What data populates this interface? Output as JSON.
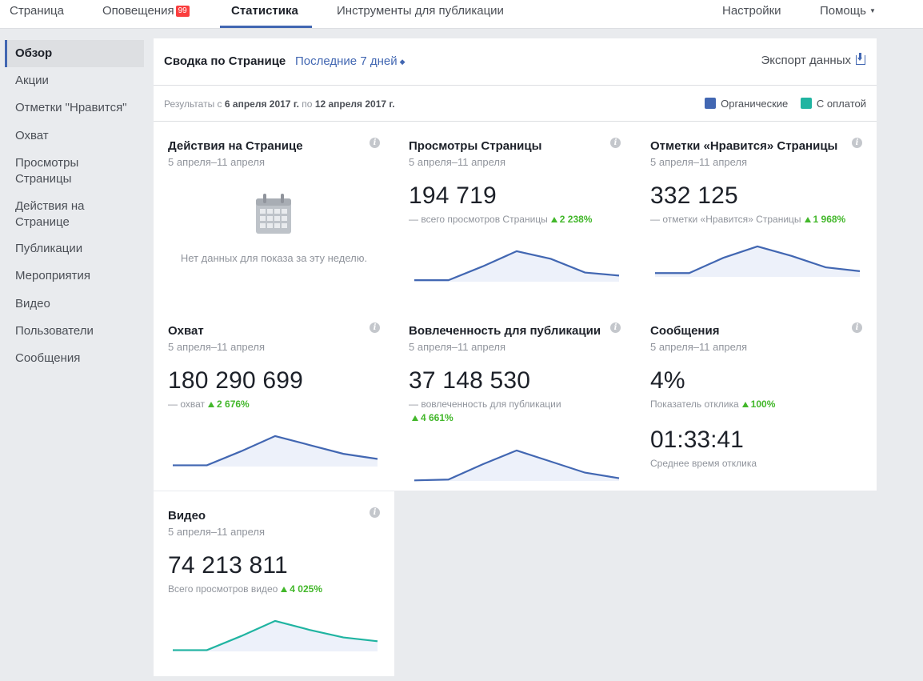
{
  "topnav": {
    "tabs": [
      {
        "label": "Страница"
      },
      {
        "label": "Оповещения",
        "badge": "99"
      },
      {
        "label": "Статистика"
      },
      {
        "label": "Инструменты для публикации"
      }
    ],
    "settings": "Настройки",
    "help": "Помощь"
  },
  "sidebar": {
    "items": [
      "Обзор",
      "Акции",
      "Отметки \"Нравится\"",
      "Охват",
      "Просмотры Страницы",
      "Действия на Странице",
      "Публикации",
      "Мероприятия",
      "Видео",
      "Пользователи",
      "Сообщения"
    ]
  },
  "panel": {
    "title": "Сводка по Странице",
    "period": "Последние 7 дней",
    "export": "Экспорт данных",
    "range_prefix": "Результаты с",
    "range_from": "6 апреля 2017 г.",
    "range_mid": "по",
    "range_to": "12 апреля 2017 г.",
    "legend": [
      {
        "label": "Органические",
        "color": "#4267b2"
      },
      {
        "label": "С оплатой",
        "color": "#20b4a1"
      }
    ]
  },
  "cards": {
    "actions": {
      "title": "Действия на Странице",
      "date": "5 апреля–11 апреля",
      "empty": "Нет данных для показа за эту неделю.",
      "icon": "calendar-icon"
    },
    "views": {
      "title": "Просмотры Страницы",
      "date": "5 апреля–11 апреля",
      "value": "194 719",
      "label": "— всего просмотров Страницы",
      "delta": "2 238%",
      "trend": [
        0.05,
        0.05,
        0.5,
        1.0,
        0.75,
        0.3,
        0.2
      ],
      "color": "#4267b2"
    },
    "likes": {
      "title": "Отметки «Нравится» Страницы",
      "date": "5 апреля–11 апреля",
      "value": "332 125",
      "label": "— отметки «Нравится» Страницы",
      "delta": "1 968%",
      "trend": [
        0.2,
        0.2,
        1.0,
        1.6,
        1.1,
        0.5,
        0.3
      ],
      "color": "#4267b2"
    },
    "reach": {
      "title": "Охват",
      "date": "5 апреля–11 апреля",
      "value": "180 290 699",
      "label": "— охват",
      "delta": "2 676%",
      "trend": [
        0.05,
        0.05,
        0.6,
        1.2,
        0.85,
        0.5,
        0.3
      ],
      "color": "#4267b2"
    },
    "engagement": {
      "title": "Вовлеченность для публикации",
      "date": "5 апреля–11 апреля",
      "value": "37 148 530",
      "label": "— вовлеченность для публикации",
      "delta": "4 661%",
      "trend": [
        0.02,
        0.05,
        0.6,
        1.1,
        0.7,
        0.3,
        0.1
      ],
      "color": "#4267b2"
    },
    "messages": {
      "title": "Сообщения",
      "date": "5 апреля–11 апреля",
      "value": "4%",
      "label": "Показатель отклика",
      "delta": "100%",
      "value2": "01:33:41",
      "label2": "Среднее время отклика"
    },
    "video": {
      "title": "Видео",
      "date": "5 апреля–11 апреля",
      "value": "74 213 811",
      "label": "Всего просмотров видео",
      "delta": "4 025%",
      "trend": [
        0.05,
        0.05,
        0.6,
        1.2,
        0.85,
        0.55,
        0.4
      ],
      "color": "#20b4a1"
    }
  }
}
